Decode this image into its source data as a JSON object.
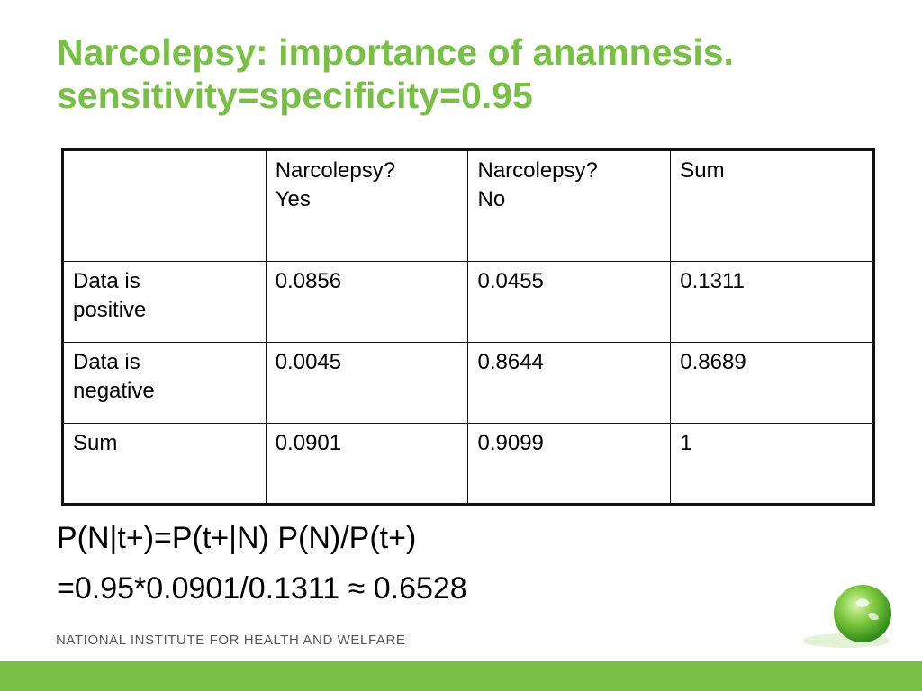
{
  "title": [
    "Narcolepsy: importance of anamnesis.",
    "sensitivity=specificity=0.95"
  ],
  "table": {
    "columns": [
      [
        "Narcolepsy?",
        "Yes"
      ],
      [
        "Narcolepsy?",
        "No"
      ],
      [
        "Sum"
      ]
    ],
    "rows": [
      {
        "label": [
          "Data is",
          "positive"
        ],
        "cells": [
          "0.0856",
          "0.0455",
          "0.1311"
        ]
      },
      {
        "label": [
          "Data is",
          "negative"
        ],
        "cells": [
          "0.0045",
          "0.8644",
          "0.8689"
        ]
      },
      {
        "label": [
          "Sum"
        ],
        "cells": [
          "0.0901",
          "0.9099",
          "1"
        ]
      }
    ]
  },
  "formula": [
    "P(N|t+)=P(t+|N) P(N)/P(t+)",
    "=0.95*0.0901/0.1311 ≈ 0.6528"
  ],
  "footer": "NATIONAL INSTITUTE FOR HEALTH AND WELFARE"
}
